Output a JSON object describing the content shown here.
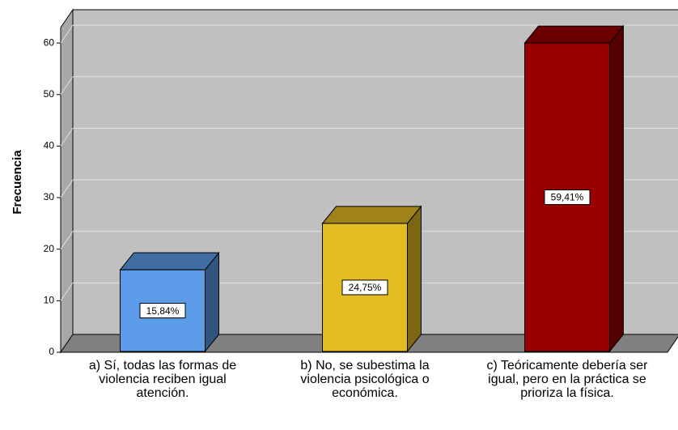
{
  "chart_data": {
    "type": "bar3d",
    "y_label": "Frecuencia",
    "categories": [
      "a) Sí, todas las formas de violencia reciben igual atención.",
      "b) No, se subestima la violencia psicológica o económica.",
      "c) Teóricamente debería ser igual, pero en la práctica se prioriza la física."
    ],
    "values": [
      16,
      25,
      60
    ],
    "percentages": [
      15.84,
      24.75,
      59.41
    ],
    "percentage_labels": [
      "15,84%",
      "24,75%",
      "59,41%"
    ],
    "colors": [
      "#5b9be8",
      "#e3bb22",
      "#9a0000"
    ],
    "ylim": [
      0,
      63
    ],
    "yticks": [
      0,
      10,
      20,
      30,
      40,
      50,
      60
    ],
    "grid": true
  }
}
